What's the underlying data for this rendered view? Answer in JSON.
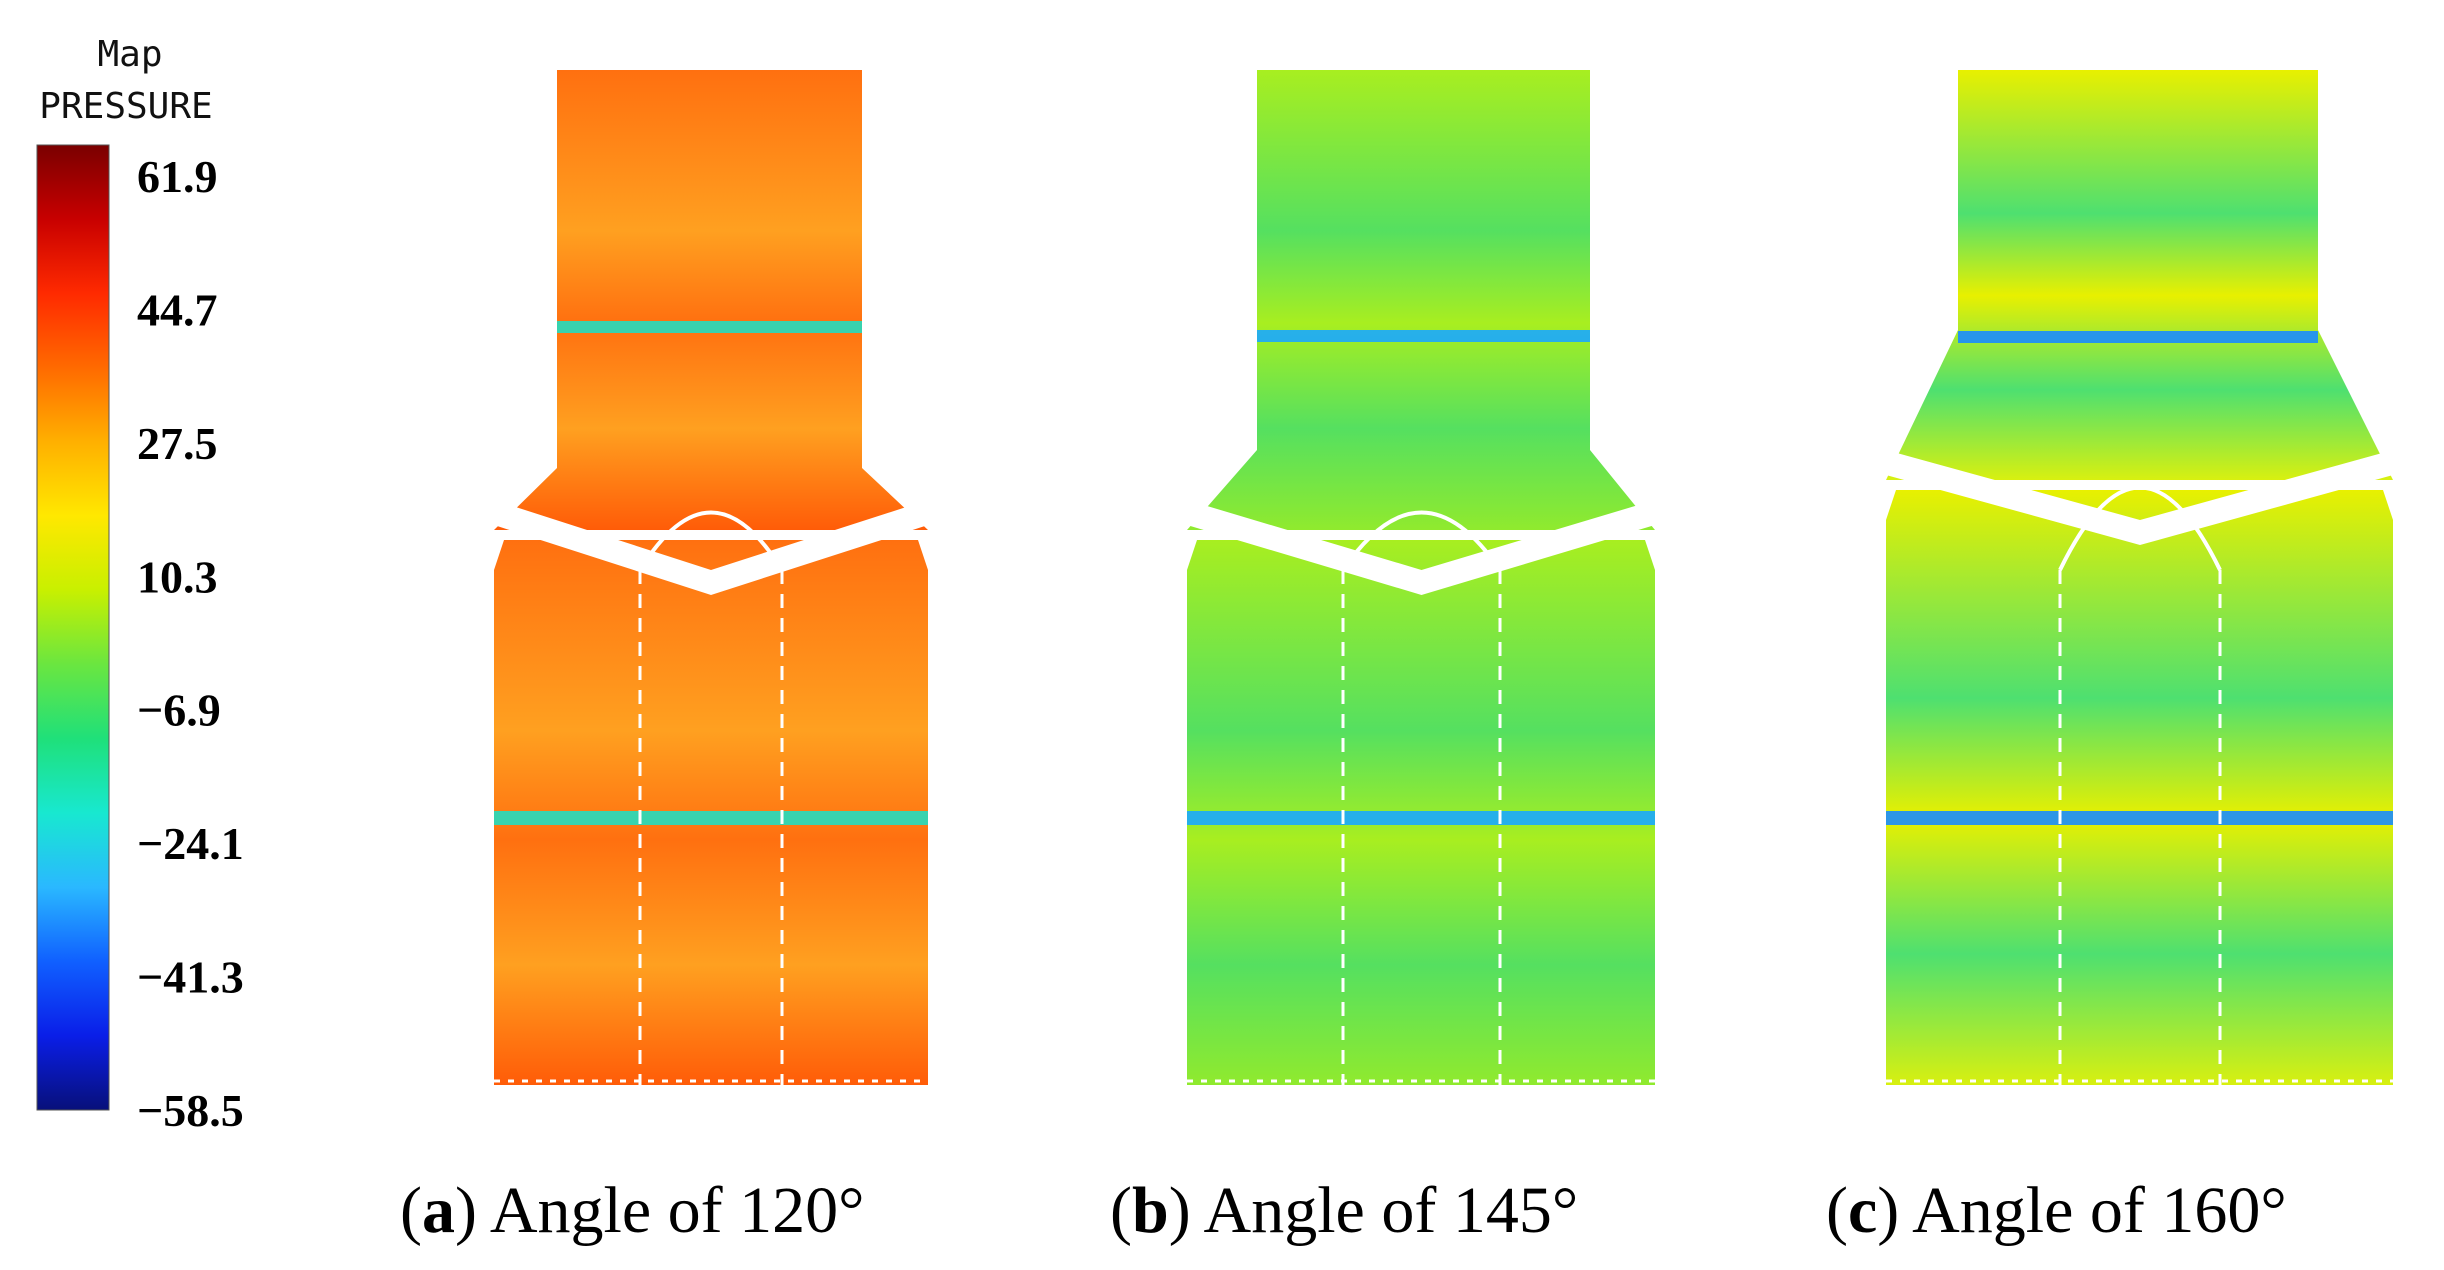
{
  "legend": {
    "title_line1": "Map",
    "title_line2": "PRESSURE",
    "ticks": [
      "61.9",
      "44.7",
      "27.5",
      "10.3",
      "−6.9",
      "−24.1",
      "−41.3",
      "−58.5"
    ],
    "colorscale": [
      "#7a0000",
      "#c80000",
      "#ff2a00",
      "#ff6a00",
      "#ffb000",
      "#ffe800",
      "#c8f000",
      "#6ae640",
      "#1fe07a",
      "#18e8d0",
      "#2ab8ff",
      "#1060ff",
      "#0a1ee8",
      "#08107a"
    ]
  },
  "panels": [
    {
      "letter": "a",
      "caption": " Angle of 120°",
      "angle_deg": 120,
      "fill_top": "#ff7010",
      "fill_mid": "#ffa020",
      "fill_bottom": "#ff5c08",
      "band_color": "#22ddc0"
    },
    {
      "letter": "b",
      "caption": " Angle of 145°",
      "angle_deg": 145,
      "fill_top": "#a8ee20",
      "fill_mid": "#55e060",
      "fill_bottom": "#90ea2e",
      "band_color": "#1aa8ff"
    },
    {
      "letter": "c",
      "caption": " Angle of 160°",
      "angle_deg": 160,
      "fill_top": "#e8f000",
      "fill_mid": "#4ee070",
      "fill_bottom": "#d8f010",
      "band_color": "#1a8cff"
    }
  ]
}
